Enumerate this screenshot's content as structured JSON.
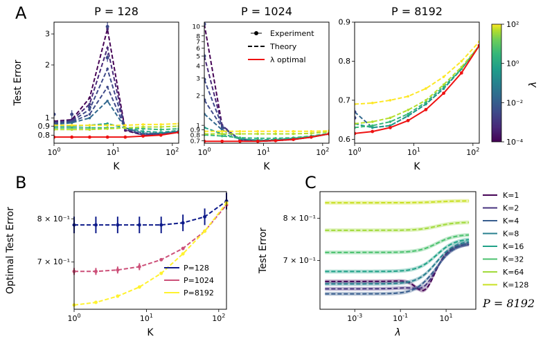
{
  "panel_labels": {
    "a": "A",
    "b": "B",
    "c": "C"
  },
  "colors": {
    "lambda_scale": [
      "#440154",
      "#482878",
      "#3e4989",
      "#31688e",
      "#26828e",
      "#1f9e89",
      "#35b779",
      "#6ece58",
      "#b5de2b",
      "#fde725"
    ],
    "red": "#ee1111",
    "b_p128": "#0d1a8a",
    "b_p1024": "#cc4f78",
    "b_p8192": "#fff22e",
    "k_colors": [
      "#440154",
      "#46327e",
      "#365c8d",
      "#277f8e",
      "#1fa187",
      "#4ac16d",
      "#a0da39",
      "#c8e020"
    ]
  },
  "chart_data": [
    {
      "id": "A1",
      "type": "line",
      "title": "P = 128",
      "xlabel": "K",
      "ylabel": "Test Error",
      "xscale": "log",
      "yscale": "log",
      "xlim": [
        1,
        128
      ],
      "ylim": [
        0.72,
        3.5
      ],
      "xticks": [
        "10^0",
        "10^1",
        "10^2"
      ],
      "yticks": [
        {
          "v": 0.8,
          "t": "0.8"
        },
        {
          "v": 0.9,
          "t": "0.9"
        },
        {
          "v": 1,
          "t": "1"
        },
        {
          "v": 2,
          "t": "2"
        },
        {
          "v": 3,
          "t": "3"
        }
      ],
      "K": [
        1,
        2,
        4,
        8,
        16,
        32,
        64,
        128
      ],
      "series": [
        {
          "lambda": "1e-4",
          "values": [
            0.96,
            0.98,
            1.3,
            3.2,
            0.85,
            0.8,
            0.81,
            0.84
          ]
        },
        {
          "lambda": "3e-4",
          "values": [
            0.95,
            0.97,
            1.2,
            2.5,
            0.86,
            0.8,
            0.81,
            0.84
          ]
        },
        {
          "lambda": "1e-3",
          "values": [
            0.94,
            0.96,
            1.12,
            1.9,
            0.87,
            0.81,
            0.81,
            0.84
          ]
        },
        {
          "lambda": "3e-3",
          "values": [
            0.93,
            0.95,
            1.05,
            1.5,
            0.87,
            0.81,
            0.82,
            0.84
          ]
        },
        {
          "lambda": "1e-2",
          "values": [
            0.92,
            0.94,
            1.0,
            1.25,
            0.88,
            0.82,
            0.82,
            0.84
          ]
        },
        {
          "lambda": "1e-1",
          "values": [
            0.9,
            0.9,
            0.91,
            0.93,
            0.88,
            0.84,
            0.83,
            0.85
          ]
        },
        {
          "lambda": "1",
          "values": [
            0.88,
            0.88,
            0.88,
            0.88,
            0.88,
            0.87,
            0.86,
            0.87
          ]
        },
        {
          "lambda": "10",
          "values": [
            0.86,
            0.86,
            0.86,
            0.87,
            0.88,
            0.89,
            0.89,
            0.9
          ]
        },
        {
          "lambda": "100",
          "values": [
            0.91,
            0.91,
            0.91,
            0.91,
            0.91,
            0.92,
            0.92,
            0.93
          ]
        }
      ],
      "experiment_points": [
        {
          "k": 1,
          "v": 1.05
        },
        {
          "k": 2,
          "v": 1.05
        },
        {
          "k": 4,
          "v": 1.15
        },
        {
          "k": 8,
          "v": 3.3
        },
        {
          "k": 8,
          "v": 2.2
        }
      ],
      "optimal": [
        0.78,
        0.78,
        0.78,
        0.78,
        0.78,
        0.79,
        0.8,
        0.83
      ]
    },
    {
      "id": "A2",
      "type": "line",
      "title": "P = 1024",
      "xlabel": "K",
      "xscale": "log",
      "yscale": "log",
      "xlim": [
        1,
        128
      ],
      "ylim": [
        0.66,
        11
      ],
      "xticks": [
        "10^0",
        "10^1",
        "10^2"
      ],
      "yticks": [
        {
          "v": 0.7,
          "t": "0.7"
        },
        {
          "v": 0.8,
          "t": "0.8"
        },
        {
          "v": 0.9,
          "t": "0.9"
        },
        {
          "v": 1,
          "t": "1"
        },
        {
          "v": 2,
          "t": "2"
        },
        {
          "v": 3,
          "t": "3"
        },
        {
          "v": 4,
          "t": "4"
        },
        {
          "v": 5,
          "t": "5"
        },
        {
          "v": 6,
          "t": "6"
        },
        {
          "v": 7,
          "t": "7"
        },
        {
          "v": 8,
          "t": "8"
        },
        {
          "v": 10,
          "t": "10"
        }
      ],
      "K": [
        1,
        2,
        4,
        8,
        16,
        32,
        64,
        128
      ],
      "series": [
        {
          "lambda": "1e-4",
          "values": [
            10.5,
            1.0,
            0.7,
            0.69,
            0.7,
            0.72,
            0.76,
            0.82
          ]
        },
        {
          "lambda": "3e-4",
          "values": [
            5.0,
            1.0,
            0.71,
            0.69,
            0.7,
            0.72,
            0.76,
            0.82
          ]
        },
        {
          "lambda": "1e-3",
          "values": [
            2.9,
            0.98,
            0.72,
            0.69,
            0.7,
            0.72,
            0.76,
            0.82
          ]
        },
        {
          "lambda": "3e-3",
          "values": [
            1.8,
            0.95,
            0.73,
            0.7,
            0.71,
            0.73,
            0.76,
            0.82
          ]
        },
        {
          "lambda": "1e-2",
          "values": [
            1.3,
            0.9,
            0.73,
            0.7,
            0.71,
            0.73,
            0.76,
            0.82
          ]
        },
        {
          "lambda": "1e-1",
          "values": [
            0.95,
            0.82,
            0.73,
            0.71,
            0.72,
            0.74,
            0.77,
            0.82
          ]
        },
        {
          "lambda": "1",
          "values": [
            0.8,
            0.78,
            0.75,
            0.74,
            0.74,
            0.75,
            0.78,
            0.83
          ]
        },
        {
          "lambda": "10",
          "values": [
            0.82,
            0.82,
            0.82,
            0.82,
            0.82,
            0.82,
            0.83,
            0.86
          ]
        },
        {
          "lambda": "100",
          "values": [
            0.87,
            0.87,
            0.87,
            0.87,
            0.87,
            0.87,
            0.87,
            0.88
          ]
        }
      ],
      "experiment_points": [
        {
          "k": 1,
          "v": 10.5
        },
        {
          "k": 1,
          "v": 5.0
        },
        {
          "k": 1,
          "v": 2.9
        },
        {
          "k": 1,
          "v": 1.8
        }
      ],
      "optimal": [
        0.69,
        0.69,
        0.69,
        0.69,
        0.7,
        0.72,
        0.76,
        0.82
      ]
    },
    {
      "id": "A3",
      "type": "line",
      "title": "P = 8192",
      "xlabel": "K",
      "xscale": "log",
      "yscale": "linear",
      "xlim": [
        1,
        128
      ],
      "ylim": [
        0.59,
        0.9
      ],
      "xticks": [
        "10^0",
        "10^1",
        "10^2"
      ],
      "yticks": [
        {
          "v": 0.6,
          "t": "0.6"
        },
        {
          "v": 0.7,
          "t": "0.7"
        },
        {
          "v": 0.8,
          "t": "0.8"
        },
        {
          "v": 0.9,
          "t": "0.9"
        }
      ],
      "K": [
        1,
        2,
        4,
        8,
        16,
        32,
        64,
        128
      ],
      "series": [
        {
          "lambda": "1e-2",
          "values": [
            0.67,
            0.63,
            0.635,
            0.66,
            0.69,
            0.73,
            0.78,
            0.84
          ]
        },
        {
          "lambda": "1e-1",
          "values": [
            0.64,
            0.63,
            0.635,
            0.66,
            0.69,
            0.73,
            0.78,
            0.84
          ]
        },
        {
          "lambda": "1",
          "values": [
            0.63,
            0.635,
            0.645,
            0.665,
            0.695,
            0.735,
            0.78,
            0.84
          ]
        },
        {
          "lambda": "10",
          "values": [
            0.64,
            0.645,
            0.655,
            0.675,
            0.7,
            0.74,
            0.785,
            0.84
          ]
        },
        {
          "lambda": "100",
          "values": [
            0.69,
            0.693,
            0.7,
            0.71,
            0.73,
            0.76,
            0.8,
            0.85
          ]
        }
      ],
      "experiment_points": [
        {
          "k": 1,
          "v": 0.67
        },
        {
          "k": 1,
          "v": 0.655
        }
      ],
      "optimal": [
        0.615,
        0.62,
        0.63,
        0.648,
        0.676,
        0.718,
        0.77,
        0.84
      ]
    },
    {
      "id": "B",
      "type": "line",
      "xlabel": "K",
      "ylabel": "Optimal Test Error",
      "xscale": "log",
      "yscale": "log",
      "xlim": [
        1,
        128
      ],
      "ylim": [
        0.605,
        0.87
      ],
      "xticks": [
        "10^0",
        "10^1",
        "10^2"
      ],
      "yticks": [
        {
          "v": 0.7,
          "t": "7 × 10⁻¹"
        },
        {
          "v": 0.8,
          "t": "8 × 10⁻¹"
        }
      ],
      "K": [
        1,
        2,
        4,
        8,
        16,
        32,
        64,
        128
      ],
      "series": [
        {
          "name": "P=128",
          "values": [
            0.785,
            0.785,
            0.785,
            0.785,
            0.785,
            0.79,
            0.805,
            0.845
          ]
        },
        {
          "name": "P=1024",
          "values": [
            0.68,
            0.68,
            0.683,
            0.69,
            0.705,
            0.73,
            0.77,
            0.835
          ]
        },
        {
          "name": "P=8192",
          "values": [
            0.613,
            0.618,
            0.63,
            0.648,
            0.676,
            0.718,
            0.77,
            0.84
          ]
        }
      ],
      "legend": [
        "P=128",
        "P=1024",
        "P=8192"
      ]
    },
    {
      "id": "C",
      "type": "line",
      "xlabel": "λ",
      "ylabel": "Test Error",
      "xscale": "log",
      "yscale": "log",
      "xlim": [
        3e-05,
        200
      ],
      "ylim": [
        0.6,
        0.87
      ],
      "xticks": [
        "10^-3",
        "10^-1",
        "10^1"
      ],
      "yticks": [
        {
          "v": 0.7,
          "t": "7 × 10⁻¹"
        },
        {
          "v": 0.8,
          "t": "8 × 10⁻¹"
        }
      ],
      "series": [
        {
          "name": "K=1",
          "flat": 0.655,
          "dip": 0.62,
          "end": 0.74
        },
        {
          "name": "K=2",
          "flat": 0.64,
          "dip": 0.625,
          "end": 0.74
        },
        {
          "name": "K=4",
          "flat": 0.63,
          "dip": 0.632,
          "end": 0.74
        },
        {
          "name": "K=8",
          "flat": 0.65,
          "dip": 0.65,
          "end": 0.745
        },
        {
          "name": "K=16",
          "flat": 0.676,
          "dip": 0.676,
          "end": 0.75
        },
        {
          "name": "K=32",
          "flat": 0.718,
          "dip": 0.718,
          "end": 0.76
        },
        {
          "name": "K=64",
          "flat": 0.77,
          "dip": 0.77,
          "end": 0.79
        },
        {
          "name": "K=128",
          "flat": 0.84,
          "dip": 0.84,
          "end": 0.845
        }
      ],
      "annotation": "P = 8192"
    }
  ],
  "legend_a": {
    "experiment": "Experiment",
    "theory": "Theory",
    "optimal": "λ optimal"
  },
  "colorbar": {
    "label": "λ",
    "ticks": [
      "10²",
      "10⁰",
      "10⁻²",
      "10⁻⁴"
    ]
  }
}
